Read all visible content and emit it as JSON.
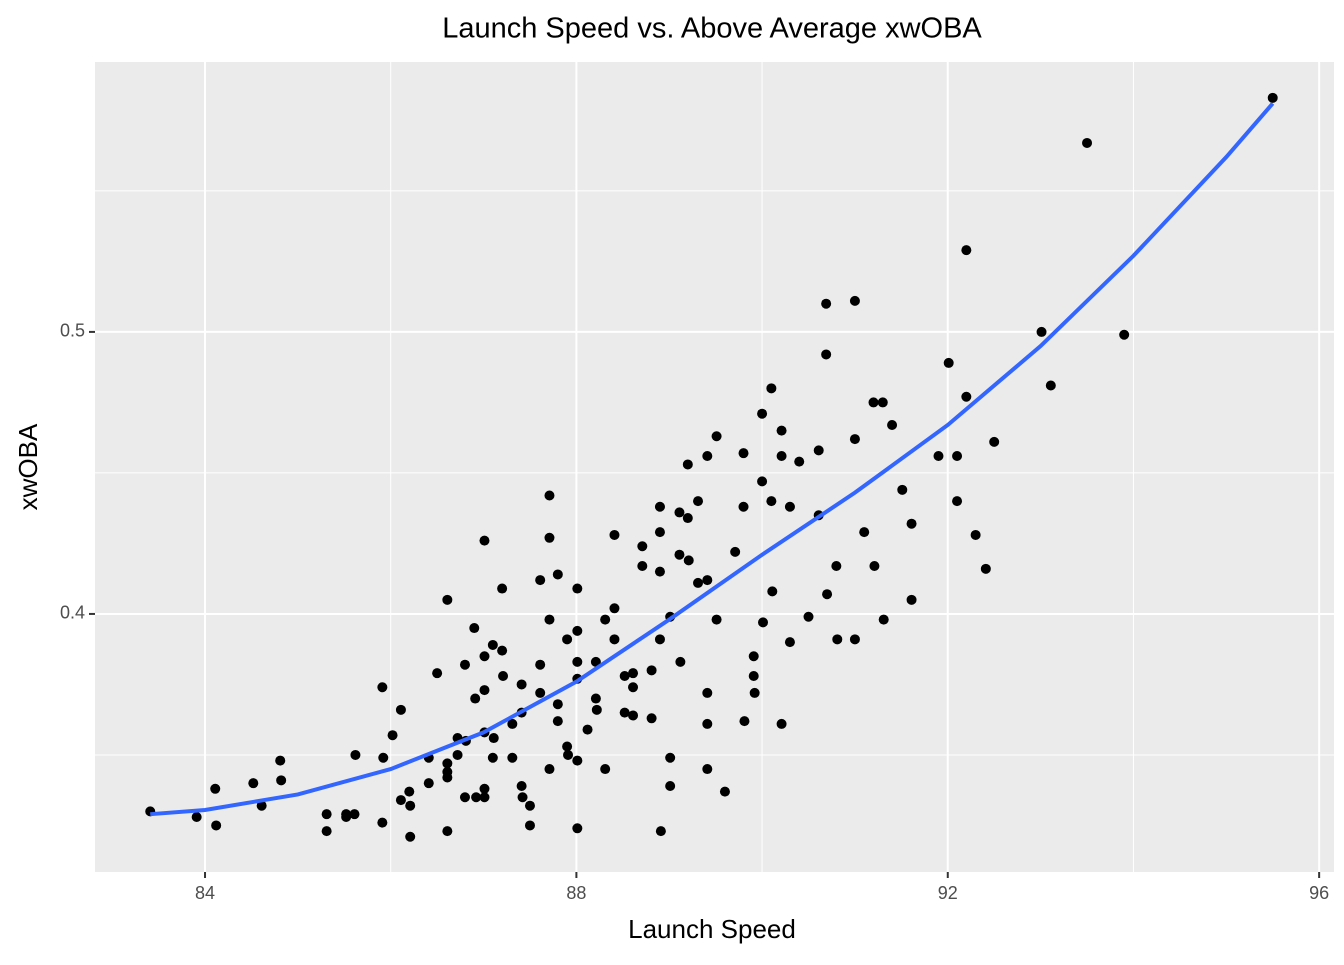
{
  "chart_data": {
    "type": "scatter",
    "title": "Launch Speed vs. Above Average xwOBA",
    "x_label": "Launch Speed",
    "y_label": "xwOBA",
    "xlim": [
      82.815,
      96.16
    ],
    "ylim": [
      0.3085,
      0.5957
    ],
    "xticks": [
      84,
      88,
      92,
      96
    ],
    "yticks": [
      0.4,
      0.5
    ],
    "x_minor_grid": [
      86,
      90,
      94
    ],
    "y_minor_grid": [
      0.35,
      0.45,
      0.55
    ],
    "grid": true,
    "panel_color": "#EBEBEB",
    "series": [
      {
        "color": "#000000",
        "x": [
          83.41,
          83.91,
          84.11,
          84.12,
          84.52,
          84.61,
          84.81,
          84.82,
          85.31,
          85.31,
          85.52,
          85.52,
          85.61,
          85.62,
          85.91,
          85.92,
          85.91,
          86.02,
          86.11,
          86.11,
          86.2,
          86.21,
          86.21,
          86.41,
          86.41,
          86.5,
          86.61,
          86.61,
          86.61,
          86.61,
          86.61,
          86.72,
          86.72,
          86.8,
          86.8,
          86.81,
          86.9,
          86.91,
          86.92,
          87.01,
          87.01,
          87.01,
          87.01,
          87.01,
          87.01,
          87.1,
          87.1,
          87.11,
          87.2,
          87.2,
          87.21,
          87.31,
          87.31,
          87.41,
          87.41,
          87.41,
          87.42,
          87.5,
          87.5,
          87.61,
          87.61,
          87.61,
          87.71,
          87.71,
          87.71,
          87.71,
          87.8,
          87.8,
          87.8,
          87.9,
          87.9,
          87.91,
          88.01,
          88.01,
          88.01,
          88.01,
          88.01,
          88.01,
          88.12,
          88.21,
          88.21,
          88.22,
          88.31,
          88.31,
          88.41,
          88.41,
          88.41,
          88.52,
          88.52,
          88.61,
          88.61,
          88.61,
          88.71,
          88.71,
          88.81,
          88.81,
          88.9,
          88.9,
          88.9,
          88.9,
          88.91,
          89.01,
          89.01,
          89.01,
          89.11,
          89.11,
          89.12,
          89.2,
          89.2,
          89.21,
          89.31,
          89.31,
          89.41,
          89.41,
          89.41,
          89.41,
          89.41,
          89.51,
          89.51,
          89.6,
          89.71,
          89.8,
          89.8,
          89.81,
          89.91,
          89.91,
          89.92,
          90.0,
          90.0,
          90.01,
          90.1,
          90.1,
          90.11,
          90.21,
          90.21,
          90.21,
          90.3,
          90.3,
          90.4,
          90.5,
          90.61,
          90.61,
          90.69,
          90.69,
          90.7,
          90.8,
          90.81,
          91.0,
          91.0,
          91.0,
          91.1,
          91.2,
          91.21,
          91.3,
          91.31,
          91.4,
          91.51,
          91.61,
          91.61,
          91.9,
          92.01,
          92.1,
          92.1,
          92.2,
          92.2,
          92.3,
          92.41,
          92.5,
          93.01,
          93.11,
          93.5,
          93.9,
          95.5
        ],
        "values": [
          0.33,
          0.328,
          0.338,
          0.325,
          0.34,
          0.332,
          0.348,
          0.341,
          0.329,
          0.323,
          0.329,
          0.328,
          0.329,
          0.35,
          0.374,
          0.349,
          0.326,
          0.357,
          0.366,
          0.334,
          0.337,
          0.332,
          0.321,
          0.34,
          0.349,
          0.379,
          0.323,
          0.405,
          0.347,
          0.344,
          0.342,
          0.356,
          0.35,
          0.382,
          0.335,
          0.355,
          0.395,
          0.37,
          0.335,
          0.426,
          0.385,
          0.373,
          0.358,
          0.338,
          0.335,
          0.389,
          0.349,
          0.356,
          0.409,
          0.387,
          0.378,
          0.349,
          0.361,
          0.375,
          0.365,
          0.339,
          0.335,
          0.325,
          0.332,
          0.412,
          0.382,
          0.372,
          0.427,
          0.442,
          0.398,
          0.345,
          0.414,
          0.362,
          0.368,
          0.391,
          0.353,
          0.35,
          0.409,
          0.383,
          0.394,
          0.377,
          0.348,
          0.324,
          0.359,
          0.383,
          0.37,
          0.366,
          0.398,
          0.345,
          0.428,
          0.402,
          0.391,
          0.365,
          0.378,
          0.364,
          0.374,
          0.379,
          0.424,
          0.417,
          0.38,
          0.363,
          0.438,
          0.429,
          0.415,
          0.391,
          0.323,
          0.399,
          0.339,
          0.349,
          0.436,
          0.421,
          0.383,
          0.453,
          0.434,
          0.419,
          0.44,
          0.411,
          0.456,
          0.412,
          0.372,
          0.345,
          0.361,
          0.463,
          0.398,
          0.337,
          0.422,
          0.457,
          0.438,
          0.362,
          0.378,
          0.385,
          0.372,
          0.447,
          0.471,
          0.397,
          0.48,
          0.44,
          0.408,
          0.465,
          0.361,
          0.456,
          0.438,
          0.39,
          0.454,
          0.399,
          0.458,
          0.435,
          0.51,
          0.492,
          0.407,
          0.417,
          0.391,
          0.511,
          0.462,
          0.391,
          0.429,
          0.475,
          0.417,
          0.475,
          0.398,
          0.467,
          0.444,
          0.432,
          0.405,
          0.456,
          0.489,
          0.456,
          0.44,
          0.529,
          0.477,
          0.428,
          0.416,
          0.461,
          0.5,
          0.481,
          0.567,
          0.499,
          0.583
        ]
      }
    ],
    "fit": {
      "color": "#3366FF",
      "x": [
        83.41,
        84,
        85,
        86,
        87,
        88,
        89,
        90,
        91,
        92,
        93,
        94,
        95,
        95.5
      ],
      "values": [
        0.329,
        0.3305,
        0.336,
        0.345,
        0.358,
        0.376,
        0.398,
        0.421,
        0.443,
        0.467,
        0.495,
        0.527,
        0.562,
        0.581
      ]
    }
  }
}
